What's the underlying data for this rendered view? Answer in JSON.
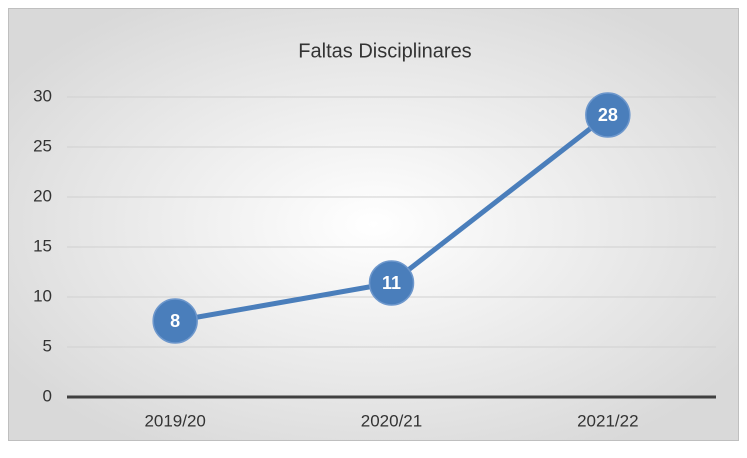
{
  "chart_data": {
    "type": "line",
    "title": "Faltas Disciplinares",
    "categories": [
      "2019/20",
      "2020/21",
      "2021/22"
    ],
    "values": [
      7.6,
      11.4,
      28.2
    ],
    "value_labels": [
      "8",
      "11",
      "28"
    ],
    "color": "#4a7ebb",
    "ylim": [
      0,
      30
    ],
    "yticks": [
      0,
      5,
      10,
      15,
      20,
      25,
      30
    ],
    "grid": true
  }
}
